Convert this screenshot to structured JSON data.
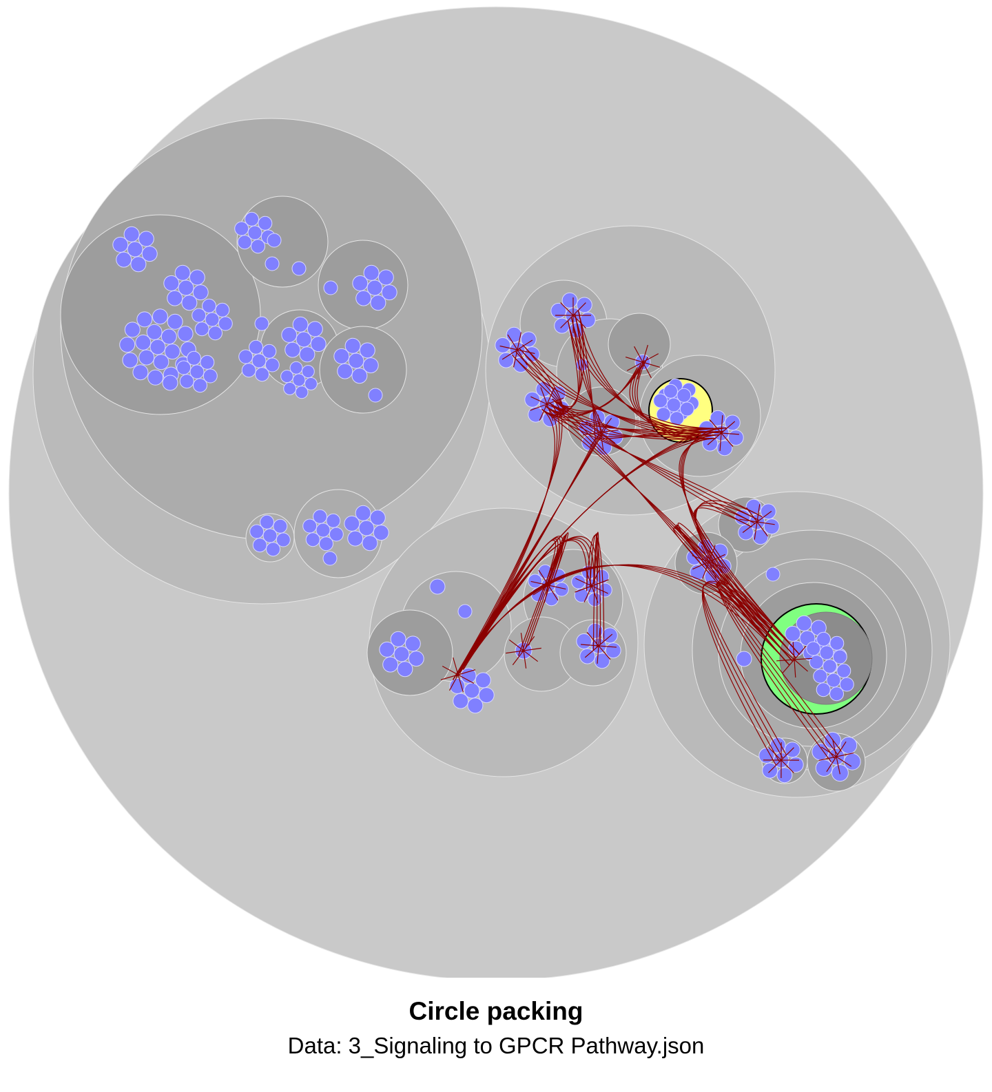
{
  "title": "Circle packing",
  "subtitle": "Data: 3_Signaling to GPCR Pathway.json",
  "colors": {
    "background": "#ffffff",
    "root_fill": "#c9c9c9",
    "level2_fill": "#bababa",
    "level3_fill": "#acacac",
    "level4_fill": "#9d9d9d",
    "level5_fill": "#8c8c8c",
    "leaf_fill": "#8080ff",
    "edge_stroke": "#8b0000",
    "highlight_yellow": "#ffff80",
    "highlight_green": "#80ff80",
    "highlight_stroke": "#000000"
  }
}
